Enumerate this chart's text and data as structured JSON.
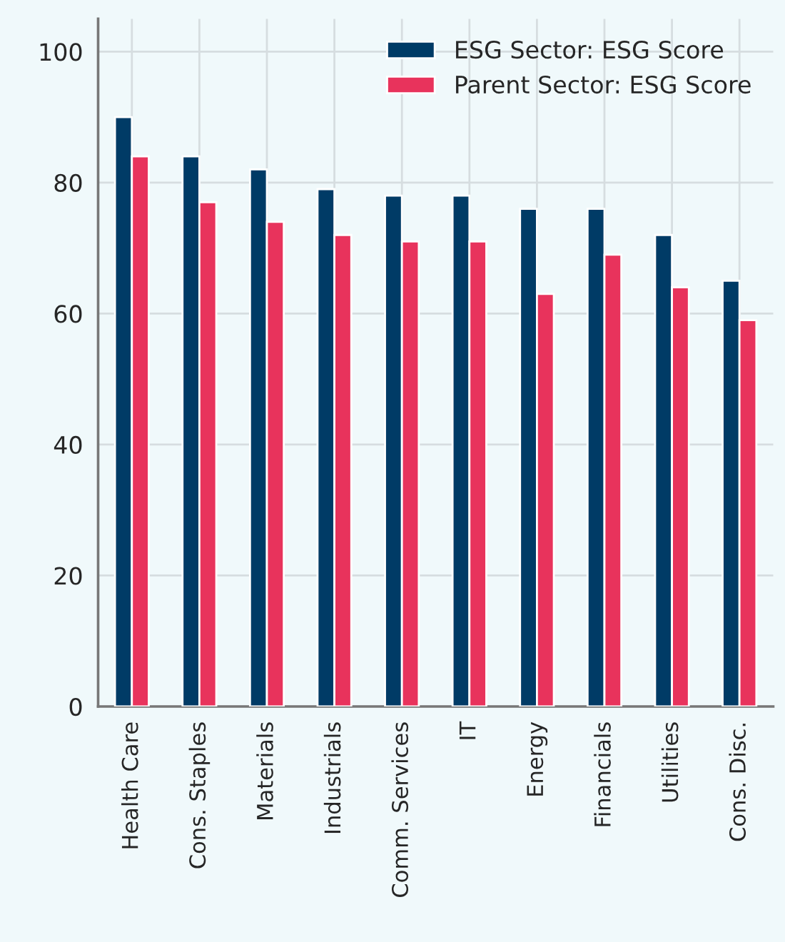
{
  "chart_data": {
    "type": "bar",
    "categories": [
      "Health Care",
      "Cons. Staples",
      "Materials",
      "Industrials",
      "Comm. Services",
      "IT",
      "Energy",
      "Financials",
      "Utilities",
      "Cons. Disc."
    ],
    "series": [
      {
        "name": "ESG Sector: ESG Score",
        "color": "#003b66",
        "values": [
          90,
          84,
          82,
          79,
          78,
          78,
          76,
          76,
          72,
          65
        ]
      },
      {
        "name": "Parent Sector: ESG Score",
        "color": "#e8335c",
        "values": [
          84,
          77,
          74,
          72,
          71,
          71,
          63,
          69,
          64,
          59
        ]
      }
    ],
    "ylim": [
      0,
      105
    ],
    "yticks": [
      0,
      20,
      40,
      60,
      80,
      100
    ],
    "grid": true,
    "legend": "top right"
  }
}
